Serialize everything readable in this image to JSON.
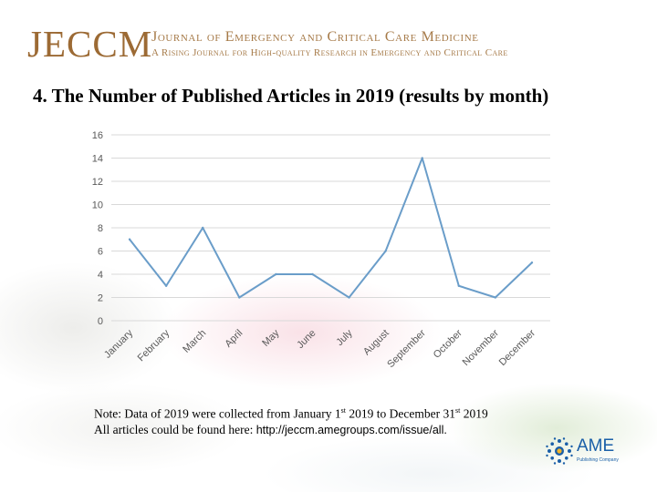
{
  "header": {
    "logo_text": "JECCM",
    "journal_name": "Journal of Emergency and Critical Care Medicine",
    "journal_tagline": "A Rising Journal for High-quality Research in Emergency and Critical Care"
  },
  "slide": {
    "title": "4. The Number of Published Articles in 2019 (results by month)"
  },
  "note": {
    "prefix": "Note: Data of 2019 were collected from January 1",
    "sup1": "st",
    "middle": " 2019 to December 31",
    "sup2": "st",
    "suffix": " 2019",
    "line2_prefix": "All articles could be found here: ",
    "link": "http://jeccm.amegroups.com/issue/all."
  },
  "publisher": {
    "name": "AME",
    "subtitle": "Publishing Company"
  },
  "colors": {
    "line": "#6a9dc9",
    "grid": "#d9d9d9",
    "brand_gold": "#9c6a34",
    "brand_blue": "#1a5fa8"
  },
  "chart_data": {
    "type": "line",
    "categories": [
      "January",
      "February",
      "March",
      "April",
      "May",
      "June",
      "July",
      "August",
      "September",
      "October",
      "November",
      "December"
    ],
    "series": [
      {
        "values": [
          7,
          3,
          8,
          2,
          4,
          4,
          2,
          6,
          14,
          3,
          2,
          5
        ]
      }
    ],
    "y_ticks": [
      0,
      2,
      4,
      6,
      8,
      10,
      12,
      14,
      16
    ],
    "ylim": [
      0,
      16
    ],
    "grid": true,
    "legend": "none",
    "title": "",
    "xlabel": "",
    "ylabel": ""
  }
}
